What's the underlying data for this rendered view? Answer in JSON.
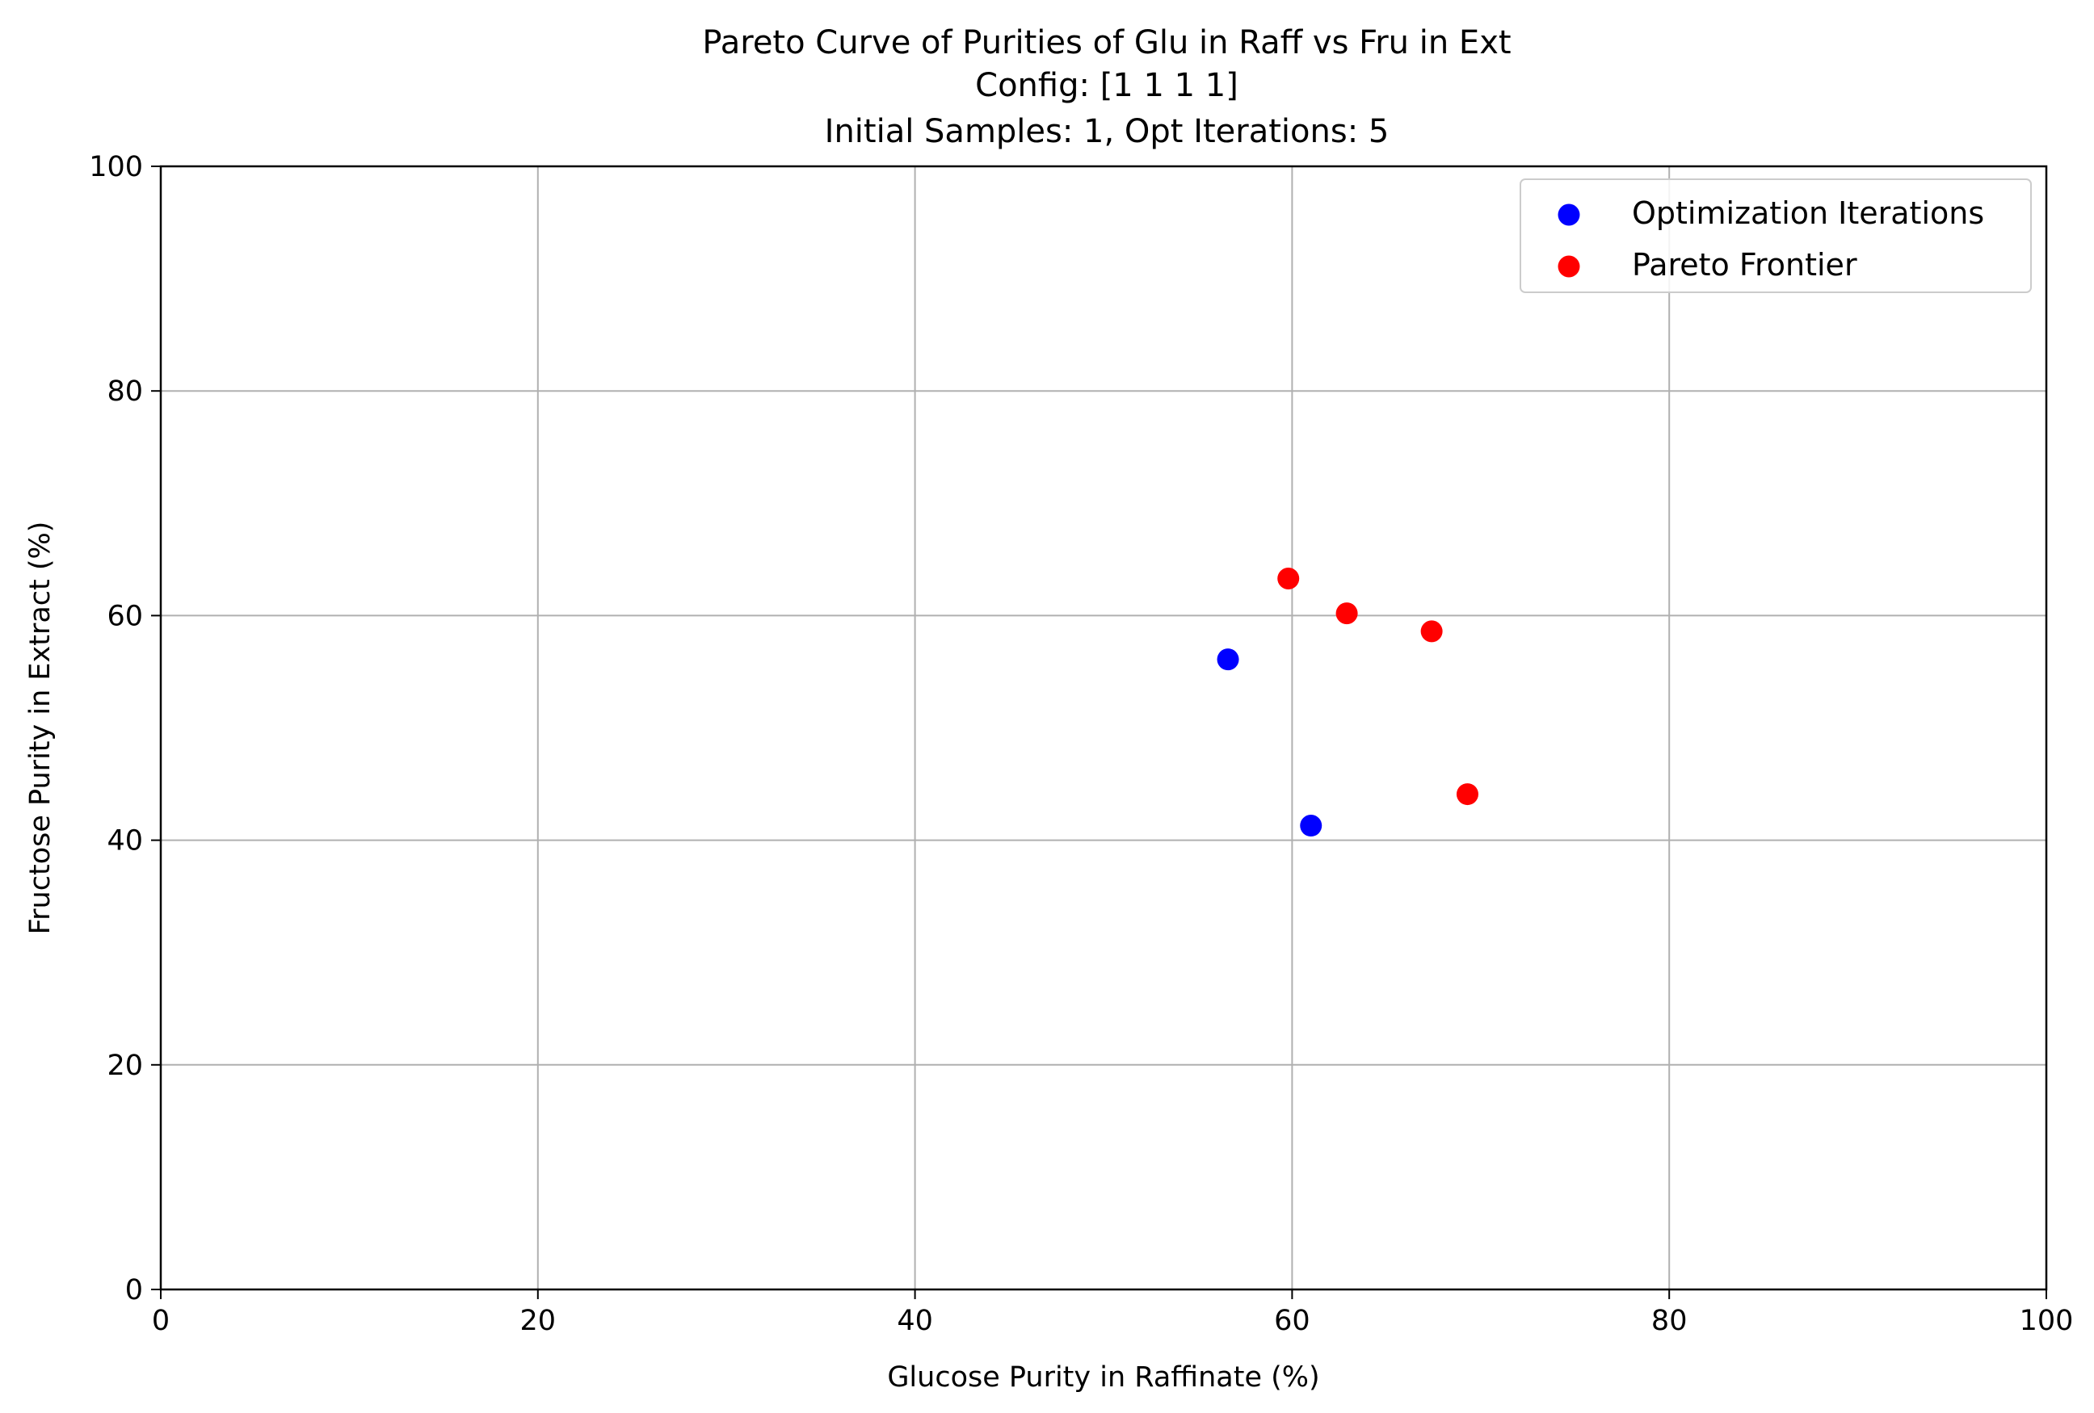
{
  "chart_data": {
    "type": "scatter",
    "title_lines": [
      "Pareto Curve of Purities of Glu in Raff vs Fru in Ext",
      "Config: [1 1 1 1]",
      "Initial Samples: 1, Opt Iterations: 5"
    ],
    "xlabel": "Glucose Purity in Raffinate (%)",
    "ylabel": "Fructose Purity in Extract (%)",
    "xlim": [
      0,
      100
    ],
    "ylim": [
      0,
      100
    ],
    "xticks": [
      0,
      20,
      40,
      60,
      80,
      100
    ],
    "yticks": [
      0,
      20,
      40,
      60,
      80,
      100
    ],
    "grid": true,
    "legend_position": "top-right",
    "series": [
      {
        "name": "Optimization Iterations",
        "color": "#0000ff",
        "points": [
          {
            "x": 56.6,
            "y": 56.1
          },
          {
            "x": 61.0,
            "y": 41.3
          }
        ]
      },
      {
        "name": "Pareto Frontier",
        "color": "#ff0000",
        "points": [
          {
            "x": 59.8,
            "y": 63.3
          },
          {
            "x": 62.9,
            "y": 60.2
          },
          {
            "x": 67.4,
            "y": 58.6
          },
          {
            "x": 69.3,
            "y": 44.1
          }
        ]
      }
    ]
  }
}
